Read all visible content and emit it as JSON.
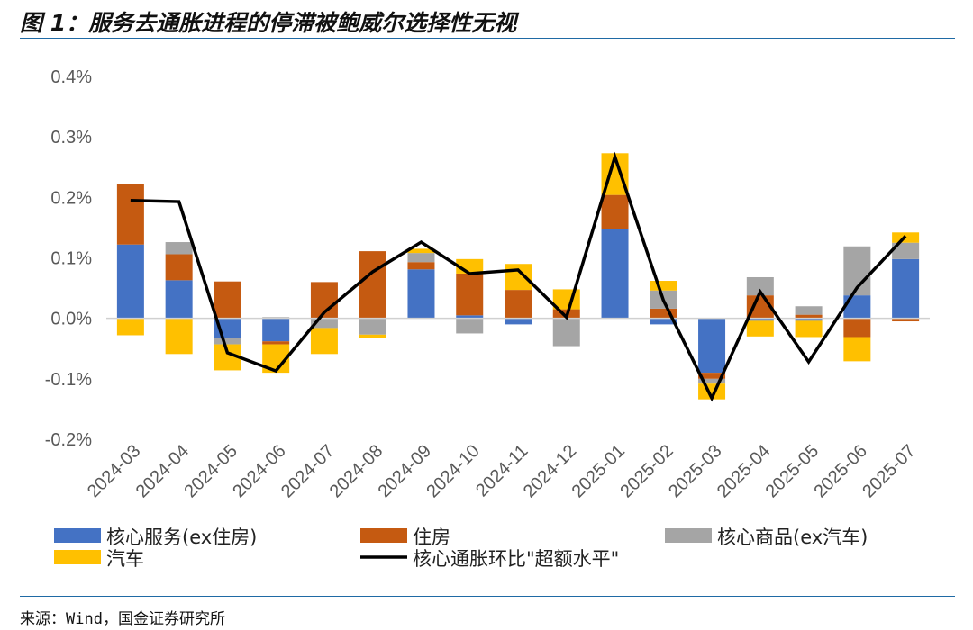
{
  "header": {
    "title": "图 1：服务去通胀进程的停滞被鲍威尔选择性无视"
  },
  "footer": {
    "source": "来源：Wind，国金证券研究所"
  },
  "chart_data": {
    "type": "bar",
    "stacked": true,
    "categories": [
      "2024-03",
      "2024-04",
      "2024-05",
      "2024-06",
      "2024-07",
      "2024-08",
      "2024-09",
      "2024-10",
      "2024-11",
      "2024-12",
      "2025-01",
      "2025-02",
      "2025-03",
      "2025-04",
      "2025-05",
      "2025-06",
      "2025-07"
    ],
    "y_tick_labels": [
      "0.4%",
      "0.3%",
      "0.2%",
      "0.1%",
      "0.0%",
      "-0.1%",
      "-0.2%"
    ],
    "ylim": [
      -0.2,
      0.4
    ],
    "grid": false,
    "legend_position": "bottom",
    "series": [
      {
        "name": "核心服务(ex住房)",
        "kind": "bar",
        "color": "#4472C4",
        "values": [
          0.122,
          0.063,
          -0.033,
          -0.038,
          0.0,
          0.0,
          0.081,
          0.005,
          -0.01,
          0.0,
          0.147,
          -0.01,
          -0.09,
          -0.004,
          -0.004,
          0.038,
          0.098
        ]
      },
      {
        "name": "住房",
        "kind": "bar",
        "color": "#C55A11",
        "values": [
          0.1,
          0.043,
          0.061,
          -0.005,
          0.06,
          0.111,
          0.012,
          0.069,
          0.047,
          0.015,
          0.057,
          0.016,
          -0.01,
          0.038,
          0.006,
          -0.031,
          -0.005
        ]
      },
      {
        "name": "核心商品(ex汽车)",
        "kind": "bar",
        "color": "#A5A5A5",
        "values": [
          0.0,
          0.02,
          -0.01,
          0.002,
          -0.016,
          -0.027,
          0.015,
          -0.025,
          0.0,
          -0.046,
          0.0,
          0.03,
          -0.008,
          0.03,
          0.014,
          0.081,
          0.027
        ]
      },
      {
        "name": "汽车",
        "kind": "bar",
        "color": "#FFC000",
        "values": [
          -0.028,
          -0.059,
          -0.043,
          -0.047,
          -0.043,
          -0.006,
          0.007,
          0.024,
          0.043,
          0.033,
          0.069,
          0.016,
          -0.026,
          -0.026,
          -0.027,
          -0.04,
          0.017
        ]
      },
      {
        "name": "核心通胀环比\"超额水平\"",
        "kind": "line",
        "color": "#000000",
        "values": [
          0.195,
          0.193,
          -0.057,
          -0.087,
          0.01,
          0.077,
          0.126,
          0.074,
          0.08,
          0.002,
          0.267,
          0.03,
          -0.132,
          0.044,
          -0.072,
          0.051,
          0.136
        ]
      }
    ]
  }
}
